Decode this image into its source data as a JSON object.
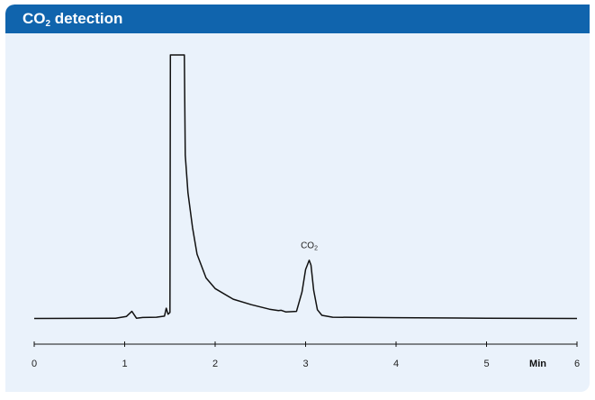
{
  "header": {
    "title_main": "CO",
    "title_sub": "2",
    "title_rest": " detection",
    "accent_color": "#1064ad",
    "panel_color": "#eaf2fb"
  },
  "chart_data": {
    "type": "line",
    "title": "CO2 detection",
    "xlabel": "Min",
    "ylabel": "",
    "xlim": [
      0,
      6
    ],
    "ylim": [
      0,
      100
    ],
    "grid": false,
    "x_ticks": [
      "0",
      "1",
      "2",
      "3",
      "4",
      "5",
      "6"
    ],
    "y_ticks": [],
    "series": [
      {
        "x": [
          0,
          0.9,
          1.02,
          1.08,
          1.13,
          1.2,
          1.35,
          1.44,
          1.46,
          1.48,
          1.5,
          1.505,
          1.66,
          1.67,
          1.7,
          1.75,
          1.8,
          1.9,
          2.0,
          2.2,
          2.4,
          2.6,
          2.7,
          2.73,
          2.78,
          2.9,
          2.96,
          3.0,
          3.04,
          3.06,
          3.09,
          3.13,
          3.18,
          3.3,
          4.0,
          5.0,
          6.0
        ],
        "y": [
          0.5,
          0.6,
          1.3,
          3.2,
          0.6,
          0.9,
          1.0,
          1.4,
          4.4,
          2.1,
          2.8,
          100,
          100,
          62.2,
          48.0,
          34.8,
          24.8,
          15.8,
          11.8,
          7.8,
          5.7,
          4.0,
          3.5,
          3.6,
          3.0,
          3.2,
          10.5,
          19.0,
          22.5,
          20.6,
          11.1,
          3.8,
          1.7,
          1.0,
          0.8,
          0.6,
          0.5
        ]
      }
    ],
    "annotations": [
      {
        "x": 3.04,
        "y": 27,
        "text_main": "CO",
        "text_sub": "2"
      }
    ]
  }
}
